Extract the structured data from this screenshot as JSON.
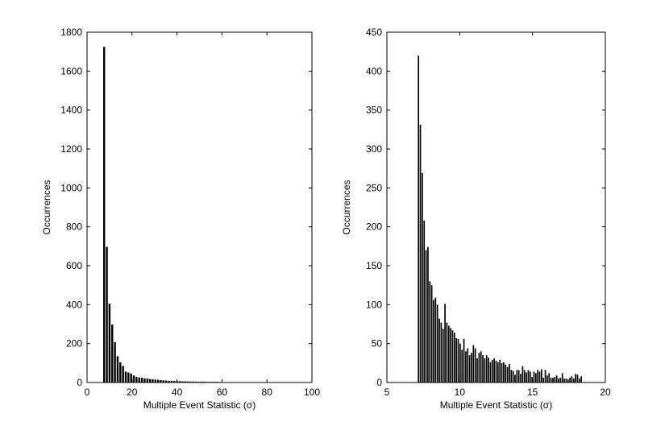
{
  "chart_data": [
    {
      "type": "bar",
      "xlabel": "Multiple Event Statistic (σ)",
      "ylabel": "Occurrences",
      "xlim": [
        0,
        100
      ],
      "ylim": [
        0,
        1800
      ],
      "xticks": [
        0,
        20,
        40,
        60,
        80,
        100
      ],
      "yticks": [
        0,
        200,
        400,
        600,
        800,
        1000,
        1200,
        1400,
        1600,
        1800
      ],
      "bin_width": 1.2,
      "x": [
        7.6,
        8.8,
        10.0,
        11.2,
        12.4,
        13.6,
        14.8,
        16.0,
        17.2,
        18.4,
        19.6,
        20.8,
        22.0,
        23.2,
        24.4,
        25.6,
        26.8,
        28.0,
        29.2,
        30.4,
        31.6,
        32.8,
        34.0,
        35.2,
        36.4,
        37.6,
        38.8,
        40.0,
        41.2,
        42.4,
        43.6,
        44.8,
        46.0,
        47.2,
        48.4,
        49.6,
        50.8,
        52.0,
        53.2,
        54.4,
        55.6,
        56.8,
        58.0,
        59.2,
        60.4,
        61.6,
        62.8,
        64.0,
        65.2,
        66.4,
        67.6,
        68.8,
        70.0,
        71.2,
        72.4,
        73.6,
        74.8,
        76.0,
        77.2,
        78.4,
        79.6,
        80.8,
        82.0,
        83.2,
        84.4,
        85.6,
        86.8,
        88.0,
        89.2,
        90.4,
        91.6,
        92.8,
        94.0,
        95.2
      ],
      "values": [
        1725,
        697,
        405,
        298,
        207,
        135,
        104,
        85,
        56,
        51,
        46,
        36,
        29,
        26,
        24,
        21,
        20,
        18,
        16,
        15,
        14,
        12,
        11,
        10,
        9,
        9,
        8,
        7,
        7,
        6,
        6,
        5,
        5,
        5,
        4,
        4,
        4,
        4,
        3,
        3,
        3,
        3,
        3,
        2,
        2,
        2,
        2,
        2,
        2,
        2,
        2,
        1,
        1,
        1,
        1,
        1,
        1,
        1,
        1,
        1,
        1,
        1,
        1,
        1,
        1,
        1,
        1,
        1,
        1,
        1,
        1,
        1,
        1,
        1
      ]
    },
    {
      "type": "bar",
      "xlabel": "Multiple Event Statistic (σ)",
      "ylabel": "Occurrences",
      "xlim": [
        5,
        20
      ],
      "ylim": [
        0,
        450
      ],
      "xticks": [
        5,
        10,
        15,
        20
      ],
      "yticks": [
        0,
        50,
        100,
        150,
        200,
        250,
        300,
        350,
        400,
        450
      ],
      "bin_width": 0.13,
      "x0": 7.17,
      "values": [
        420,
        331,
        269,
        208,
        170,
        174,
        130,
        125,
        106,
        109,
        100,
        82,
        77,
        69,
        101,
        77,
        73,
        70,
        67,
        64,
        57,
        56,
        50,
        42,
        56,
        40,
        44,
        35,
        38,
        48,
        44,
        31,
        38,
        40,
        35,
        31,
        35,
        32,
        26,
        29,
        31,
        28,
        26,
        29,
        25,
        26,
        23,
        20,
        24,
        16,
        15,
        10,
        16,
        16,
        11,
        21,
        16,
        13,
        16,
        14,
        7,
        14,
        12,
        16,
        14,
        17,
        6,
        16,
        9,
        12,
        6,
        6,
        7,
        9,
        5,
        6,
        12,
        5,
        5,
        4,
        6,
        8,
        5,
        11,
        10,
        5,
        8
      ]
    }
  ]
}
